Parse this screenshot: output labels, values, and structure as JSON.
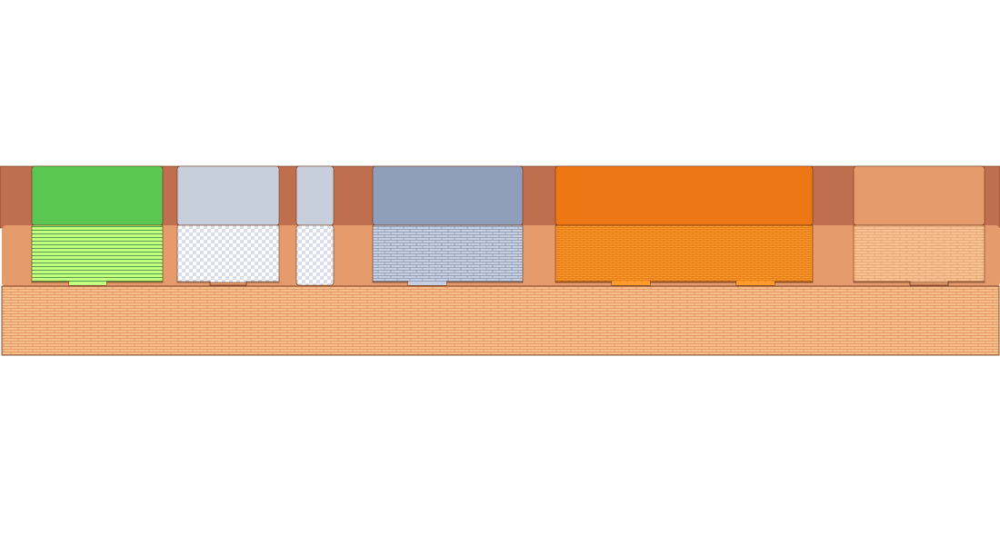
{
  "colors": {
    "background": "#ffffff",
    "upper_band": "#bf6f4e",
    "middle_band": "#e59b6b",
    "base_fill": "#f7bd8a",
    "base_brick_line": "#dd9060",
    "outline": "#6a3419"
  },
  "modules": [
    {
      "id": "module-green",
      "top_color": "#5ac752",
      "fill_color": "#c3ff82",
      "line_color": "#3b8a32",
      "pattern": "horizontal-lines",
      "connectors": 1
    },
    {
      "id": "module-silver-1",
      "top_color": "#c8cfdc",
      "fill_color": "#ffffff",
      "line_color": "#b9c0cf",
      "pattern": "checker",
      "connectors": 1
    },
    {
      "id": "module-silver-2",
      "top_color": "#c8cfdc",
      "fill_color": "#ffffff",
      "line_color": "#b9c0cf",
      "pattern": "checker",
      "connectors": 0
    },
    {
      "id": "module-slate",
      "top_color": "#8f9fbb",
      "fill_color": "#c6d0e2",
      "line_color": "#8694ad",
      "pattern": "brick",
      "connectors": 1
    },
    {
      "id": "module-orange",
      "top_color": "#ee7715",
      "fill_color": "#fb9b2a",
      "line_color": "#d4650c",
      "pattern": "fine-brick",
      "connectors": 2
    },
    {
      "id": "module-peach",
      "top_color": "#e59b6b",
      "fill_color": "#f7c190",
      "line_color": "#e2a271",
      "pattern": "brick",
      "connectors": 1
    }
  ]
}
